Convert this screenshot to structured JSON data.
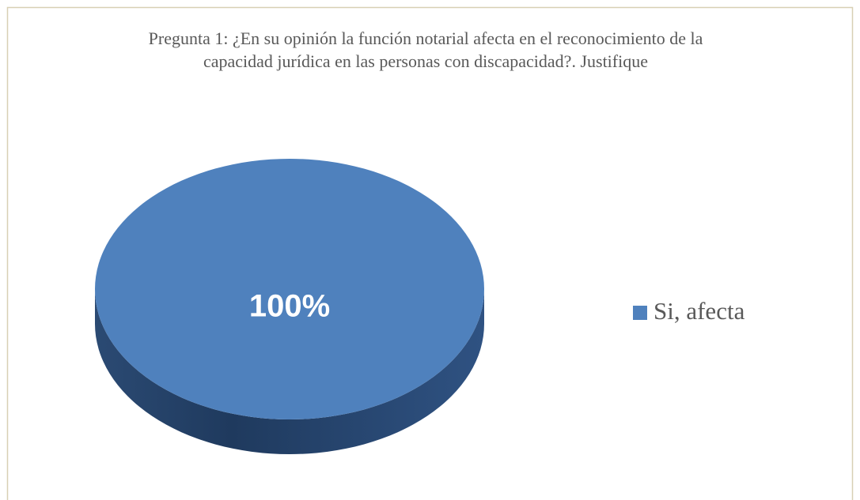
{
  "chart_data": {
    "type": "pie",
    "title": "Pregunta 1: ¿En su opinión la función notarial afecta en el reconocimiento de la capacidad jurídica en las personas con discapacidad?. Justifique",
    "categories": [
      "Si, afecta"
    ],
    "values": [
      100
    ],
    "value_labels": [
      "100%"
    ],
    "colors": [
      "#4f81bd"
    ],
    "legend": "right"
  }
}
